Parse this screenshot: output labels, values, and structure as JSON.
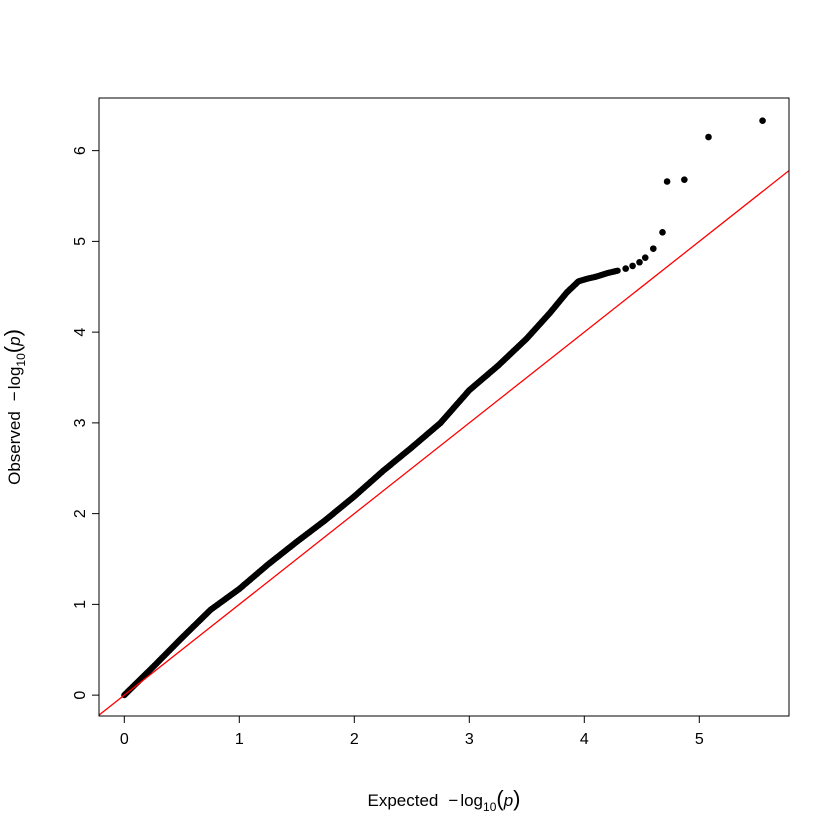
{
  "chart_data": {
    "type": "scatter",
    "title": "",
    "xlabel": {
      "prefix": "Expected",
      "func": "log",
      "base": "10",
      "var": "p"
    },
    "ylabel": {
      "prefix": "Observed",
      "func": "log",
      "base": "10",
      "var": "p"
    },
    "xlim": [
      -0.22,
      5.78
    ],
    "ylim": [
      -0.23,
      6.58
    ],
    "x_ticks": [
      0,
      1,
      2,
      3,
      4,
      5
    ],
    "y_ticks": [
      0,
      1,
      2,
      3,
      4,
      5,
      6
    ],
    "grid": false,
    "legend": "none",
    "point_color": "#000000",
    "reference_line": {
      "slope": 1,
      "intercept": 0,
      "color": "#ff0000"
    },
    "curve": [
      [
        0.0,
        0.0
      ],
      [
        0.25,
        0.31
      ],
      [
        0.5,
        0.63
      ],
      [
        0.75,
        0.94
      ],
      [
        1.0,
        1.17
      ],
      [
        1.25,
        1.44
      ],
      [
        1.5,
        1.69
      ],
      [
        1.75,
        1.93
      ],
      [
        2.0,
        2.19
      ],
      [
        2.25,
        2.47
      ],
      [
        2.5,
        2.73
      ],
      [
        2.75,
        3.0
      ],
      [
        3.0,
        3.36
      ],
      [
        3.25,
        3.63
      ],
      [
        3.5,
        3.93
      ],
      [
        3.7,
        4.21
      ],
      [
        3.85,
        4.44
      ],
      [
        3.95,
        4.56
      ],
      [
        4.03,
        4.59
      ],
      [
        4.1,
        4.61
      ],
      [
        4.2,
        4.65
      ],
      [
        4.3,
        4.68
      ]
    ],
    "points": [
      [
        4.36,
        4.7
      ],
      [
        4.42,
        4.73
      ],
      [
        4.48,
        4.77
      ],
      [
        4.53,
        4.82
      ],
      [
        4.6,
        4.92
      ],
      [
        4.68,
        5.1
      ],
      [
        4.72,
        5.66
      ],
      [
        4.87,
        5.68
      ],
      [
        5.08,
        6.15
      ],
      [
        5.55,
        6.33
      ]
    ]
  }
}
